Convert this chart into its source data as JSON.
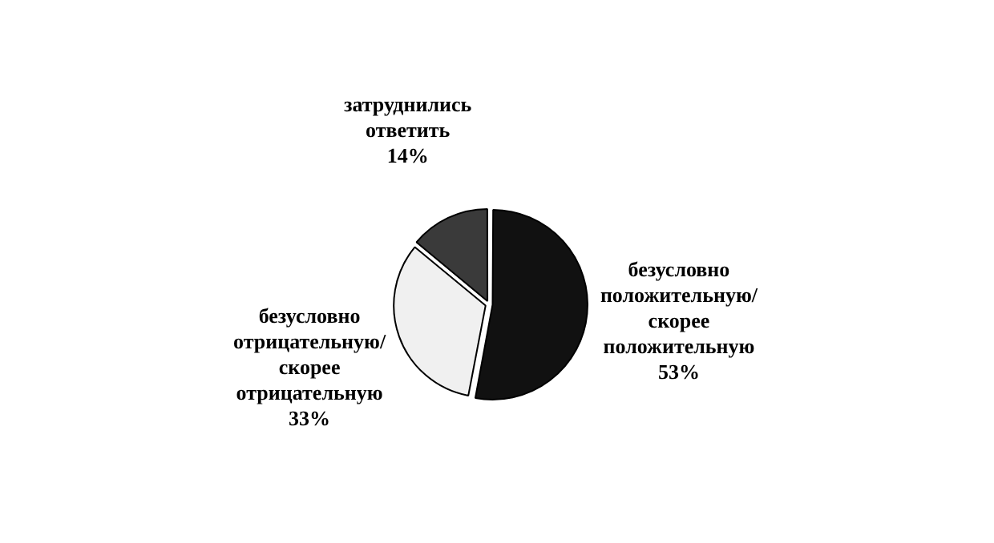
{
  "chart_data": {
    "type": "pie",
    "categories": [
      "безусловно положительную/ скорее положительную",
      "безусловно отрицательную/ скорее отрицательную",
      "затруднились ответить"
    ],
    "values": [
      53,
      33,
      14
    ],
    "value_labels": [
      "53%",
      "33%",
      "14%"
    ],
    "colors": [
      "#111111",
      "#f0f0f0",
      "#3a3a3a"
    ]
  }
}
